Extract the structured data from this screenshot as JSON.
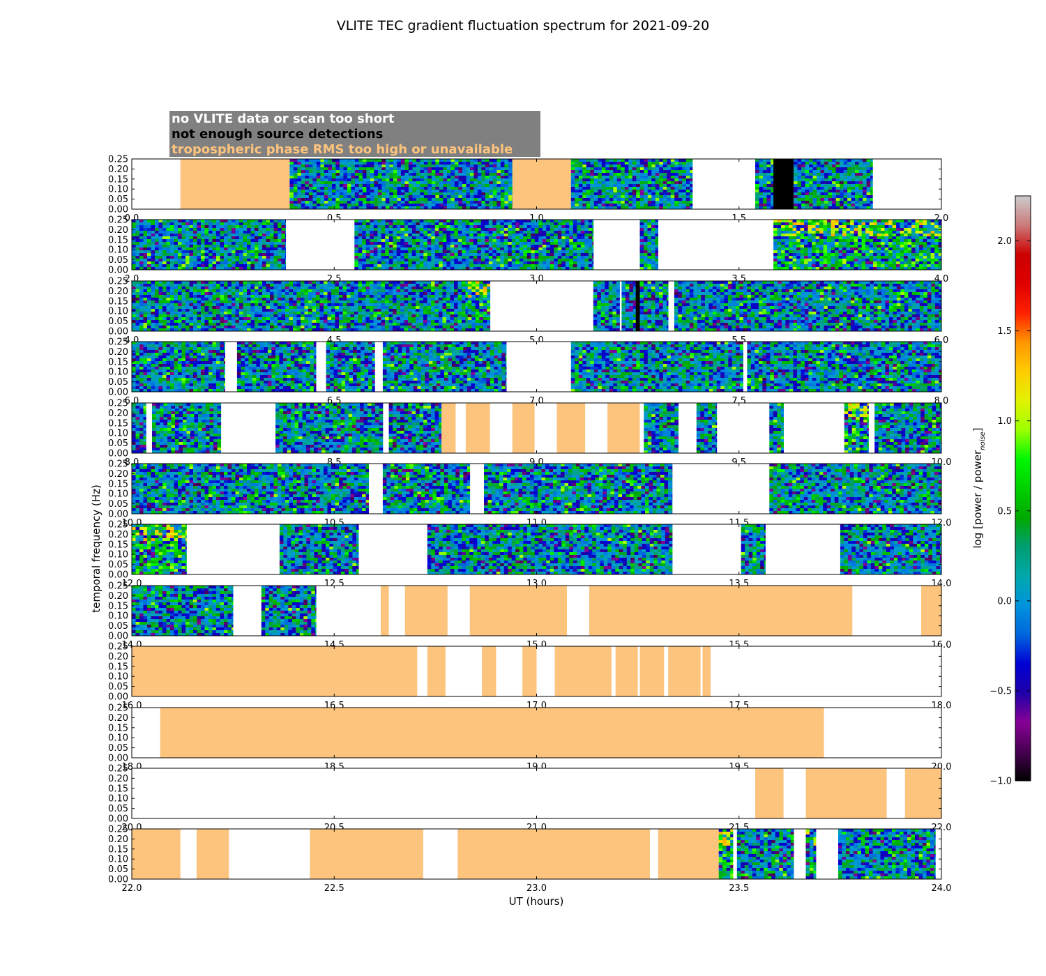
{
  "chart_data": {
    "type": "heatmap",
    "title": "VLITE TEC gradient fluctuation spectrum for 2021-09-20",
    "xlabel": "UT (hours)",
    "ylabel": "temporal frequency (Hz)",
    "colorbar_label": "log [power / power_noise]",
    "colorbar": {
      "ticks": [
        "−1.0",
        "−0.5",
        "0.0",
        "0.5",
        "1.0",
        "1.5",
        "2.0"
      ],
      "tick_values": [
        -1.0,
        -0.5,
        0.0,
        0.5,
        1.0,
        1.5,
        2.0
      ],
      "range": [
        -1.0,
        2.25
      ],
      "colormap": "nipy_spectral"
    },
    "ylim": [
      0.0,
      0.25
    ],
    "y_ticks": [
      "0.00",
      "0.05",
      "0.10",
      "0.15",
      "0.20",
      "0.25"
    ],
    "legend": {
      "placement": "top-left",
      "entries": [
        {
          "text": "no VLITE data or scan too short",
          "color": "#ffffff",
          "bg": "#808080"
        },
        {
          "text": "not enough source detections",
          "color": "#000000",
          "bg": "#808080"
        },
        {
          "text": "tropospheric phase RMS too high or unavailable",
          "color": "#fdc47e",
          "bg": "#808080"
        }
      ]
    },
    "colors": {
      "tropo_flag": "#fdc47e",
      "no_detections": "#000000",
      "no_data": "#ffffff"
    },
    "panels": [
      {
        "xlim": [
          0.0,
          2.0
        ],
        "x_ticks": [
          "0.0",
          "0.5",
          "1.0",
          "1.5",
          "2.0"
        ],
        "segments": [
          {
            "x": [
              0.12,
              0.39
            ],
            "state": "tropo"
          },
          {
            "x": [
              0.39,
              0.94
            ],
            "state": "data"
          },
          {
            "x": [
              0.94,
              1.085
            ],
            "state": "tropo"
          },
          {
            "x": [
              1.085,
              1.385
            ],
            "state": "data"
          },
          {
            "x": [
              1.54,
              1.585
            ],
            "state": "data"
          },
          {
            "x": [
              1.585,
              1.635
            ],
            "state": "nodet"
          },
          {
            "x": [
              1.635,
              1.83
            ],
            "state": "data"
          }
        ]
      },
      {
        "xlim": [
          2.0,
          4.0
        ],
        "x_ticks": [
          "2.0",
          "2.5",
          "3.0",
          "3.5",
          "4.0"
        ],
        "segments": [
          {
            "x": [
              2.0,
              2.38
            ],
            "state": "data"
          },
          {
            "x": [
              2.55,
              3.14
            ],
            "state": "data"
          },
          {
            "x": [
              3.255,
              3.3
            ],
            "state": "data"
          },
          {
            "x": [
              3.585,
              4.0
            ],
            "state": "data",
            "hot": true
          }
        ]
      },
      {
        "xlim": [
          4.0,
          6.0
        ],
        "x_ticks": [
          "4.0",
          "4.5",
          "5.0",
          "5.5",
          "6.0"
        ],
        "segments": [
          {
            "x": [
              4.0,
              4.83
            ],
            "state": "data"
          },
          {
            "x": [
              4.83,
              4.885
            ],
            "state": "data",
            "hot": true
          },
          {
            "x": [
              5.14,
              5.205
            ],
            "state": "data"
          },
          {
            "x": [
              5.21,
              5.245
            ],
            "state": "data"
          },
          {
            "x": [
              5.245,
              5.255
            ],
            "state": "nodet"
          },
          {
            "x": [
              5.255,
              5.325
            ],
            "state": "data"
          },
          {
            "x": [
              5.34,
              6.0
            ],
            "state": "data"
          }
        ]
      },
      {
        "xlim": [
          6.0,
          8.0
        ],
        "x_ticks": [
          "6.0",
          "6.5",
          "7.0",
          "7.5",
          "8.0"
        ],
        "segments": [
          {
            "x": [
              6.0,
              6.23
            ],
            "state": "data"
          },
          {
            "x": [
              6.26,
              6.455
            ],
            "state": "data"
          },
          {
            "x": [
              6.48,
              6.6
            ],
            "state": "data"
          },
          {
            "x": [
              6.62,
              6.925
            ],
            "state": "data"
          },
          {
            "x": [
              7.085,
              7.51
            ],
            "state": "data"
          },
          {
            "x": [
              7.52,
              8.0
            ],
            "state": "data"
          }
        ]
      },
      {
        "xlim": [
          8.0,
          10.0
        ],
        "x_ticks": [
          "8.0",
          "8.5",
          "9.0",
          "9.5",
          "10.0"
        ],
        "segments": [
          {
            "x": [
              8.0,
              8.035
            ],
            "state": "data"
          },
          {
            "x": [
              8.05,
              8.22
            ],
            "state": "data"
          },
          {
            "x": [
              8.355,
              8.62
            ],
            "state": "data"
          },
          {
            "x": [
              8.635,
              8.765
            ],
            "state": "data"
          },
          {
            "x": [
              8.765,
              8.8
            ],
            "state": "tropo"
          },
          {
            "x": [
              8.825,
              8.885
            ],
            "state": "tropo"
          },
          {
            "x": [
              8.94,
              8.995
            ],
            "state": "tropo"
          },
          {
            "x": [
              9.05,
              9.12
            ],
            "state": "tropo"
          },
          {
            "x": [
              9.175,
              9.255
            ],
            "state": "tropo"
          },
          {
            "x": [
              9.265,
              9.35
            ],
            "state": "data"
          },
          {
            "x": [
              9.395,
              9.445
            ],
            "state": "data"
          },
          {
            "x": [
              9.575,
              9.61
            ],
            "state": "data"
          },
          {
            "x": [
              9.76,
              9.82
            ],
            "state": "data",
            "hot": true
          },
          {
            "x": [
              9.835,
              10.0
            ],
            "state": "data"
          }
        ]
      },
      {
        "xlim": [
          10.0,
          12.0
        ],
        "x_ticks": [
          "10.0",
          "10.5",
          "11.0",
          "11.5",
          "12.0"
        ],
        "segments": [
          {
            "x": [
              10.0,
              10.585
            ],
            "state": "data"
          },
          {
            "x": [
              10.62,
              10.835
            ],
            "state": "data"
          },
          {
            "x": [
              10.87,
              11.335
            ],
            "state": "data"
          },
          {
            "x": [
              11.575,
              12.0
            ],
            "state": "data"
          }
        ]
      },
      {
        "xlim": [
          12.0,
          14.0
        ],
        "x_ticks": [
          "12.0",
          "12.5",
          "13.0",
          "13.5",
          "14.0"
        ],
        "segments": [
          {
            "x": [
              12.0,
              12.135
            ],
            "state": "data",
            "hot": true
          },
          {
            "x": [
              12.365,
              12.56
            ],
            "state": "data"
          },
          {
            "x": [
              12.73,
              13.335
            ],
            "state": "data"
          },
          {
            "x": [
              13.505,
              13.565
            ],
            "state": "data"
          },
          {
            "x": [
              13.75,
              14.0
            ],
            "state": "data"
          }
        ]
      },
      {
        "xlim": [
          14.0,
          16.0
        ],
        "x_ticks": [
          "14.0",
          "14.5",
          "15.0",
          "15.5",
          "16.0"
        ],
        "segments": [
          {
            "x": [
              14.0,
              14.25
            ],
            "state": "data"
          },
          {
            "x": [
              14.32,
              14.455
            ],
            "state": "data"
          },
          {
            "x": [
              14.615,
              14.635
            ],
            "state": "tropo"
          },
          {
            "x": [
              14.675,
              14.78
            ],
            "state": "tropo"
          },
          {
            "x": [
              14.835,
              15.075
            ],
            "state": "tropo"
          },
          {
            "x": [
              15.13,
              15.78
            ],
            "state": "tropo"
          },
          {
            "x": [
              15.95,
              16.0
            ],
            "state": "tropo"
          }
        ]
      },
      {
        "xlim": [
          16.0,
          18.0
        ],
        "x_ticks": [
          "16.0",
          "16.5",
          "17.0",
          "17.5",
          "18.0"
        ],
        "segments": [
          {
            "x": [
              16.0,
              16.705
            ],
            "state": "tropo"
          },
          {
            "x": [
              16.73,
              16.775
            ],
            "state": "tropo"
          },
          {
            "x": [
              16.865,
              16.9
            ],
            "state": "tropo"
          },
          {
            "x": [
              16.965,
              17.0
            ],
            "state": "tropo"
          },
          {
            "x": [
              17.045,
              17.185
            ],
            "state": "tropo"
          },
          {
            "x": [
              17.195,
              17.25
            ],
            "state": "tropo"
          },
          {
            "x": [
              17.255,
              17.315
            ],
            "state": "tropo"
          },
          {
            "x": [
              17.325,
              17.405
            ],
            "state": "tropo"
          },
          {
            "x": [
              17.41,
              17.43
            ],
            "state": "tropo"
          }
        ]
      },
      {
        "xlim": [
          18.0,
          20.0
        ],
        "x_ticks": [
          "18.0",
          "18.5",
          "19.0",
          "19.5",
          "20.0"
        ],
        "segments": [
          {
            "x": [
              18.07,
              19.71
            ],
            "state": "tropo"
          }
        ]
      },
      {
        "xlim": [
          20.0,
          22.0
        ],
        "x_ticks": [
          "20.0",
          "20.5",
          "21.0",
          "21.5",
          "22.0"
        ],
        "segments": [
          {
            "x": [
              21.54,
              21.61
            ],
            "state": "tropo"
          },
          {
            "x": [
              21.665,
              21.865
            ],
            "state": "tropo"
          },
          {
            "x": [
              21.91,
              22.0
            ],
            "state": "tropo"
          }
        ]
      },
      {
        "xlim": [
          22.0,
          24.0
        ],
        "x_ticks": [
          "22.0",
          "22.5",
          "23.0",
          "23.5",
          "24.0"
        ],
        "segments": [
          {
            "x": [
              22.0,
              22.12
            ],
            "state": "tropo"
          },
          {
            "x": [
              22.16,
              22.24
            ],
            "state": "tropo"
          },
          {
            "x": [
              22.44,
              22.72
            ],
            "state": "tropo"
          },
          {
            "x": [
              22.805,
              23.28
            ],
            "state": "tropo"
          },
          {
            "x": [
              23.3,
              23.45
            ],
            "state": "tropo"
          },
          {
            "x": [
              23.45,
              23.485
            ],
            "state": "data",
            "hot": true
          },
          {
            "x": [
              23.495,
              23.635
            ],
            "state": "data"
          },
          {
            "x": [
              23.665,
              23.69
            ],
            "state": "data",
            "hot": true
          },
          {
            "x": [
              23.745,
              23.985
            ],
            "state": "data"
          }
        ]
      }
    ]
  }
}
